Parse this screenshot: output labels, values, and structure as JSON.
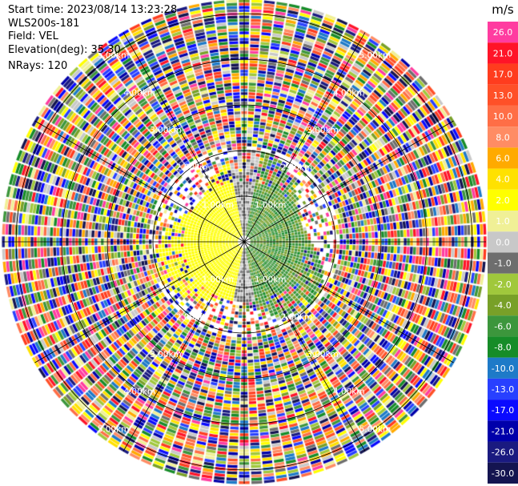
{
  "header": {
    "start_time": "Start time: 2023/08/14 13:23:28",
    "instrument": "WLS200s-181",
    "field": "Field: VEL",
    "elevation": "Elevation(deg): 35.30",
    "nrays": "NRays: 120"
  },
  "chart_data": {
    "type": "heatmap",
    "subtype": "ppi-polar",
    "title": "",
    "field": "VEL",
    "units": "m/s",
    "elevation_deg": 35.3,
    "n_rays": 120,
    "range_ring_labels": [
      "1.00km",
      "2.00km",
      "3.00km",
      "4.00km",
      "5.00km"
    ],
    "range_rings_km": [
      1,
      2,
      3,
      4,
      5
    ],
    "max_range_km": 5.3,
    "colorbar": {
      "label": "m/s",
      "ticks": [
        "26.0",
        "21.0",
        "17.0",
        "13.0",
        "10.0",
        "8.0",
        "6.0",
        "4.0",
        "2.0",
        "1.0",
        "0.0",
        "-1.0",
        "-2.0",
        "-4.0",
        "-6.0",
        "-8.0",
        "-10.0",
        "-13.0",
        "-17.0",
        "-21.0",
        "-26.0",
        "-30.0"
      ],
      "colors": [
        "#ff3ca0",
        "#ff1428",
        "#ff3c1e",
        "#ff5028",
        "#ff6e46",
        "#ff8c64",
        "#ffaa00",
        "#ffe100",
        "#ffff00",
        "#f0f096",
        "#c8c8c8",
        "#6e6e6e",
        "#a0c83c",
        "#78a028",
        "#3c963c",
        "#168c28",
        "#1e7ac8",
        "#2840ff",
        "#0a0aff",
        "#0000aa",
        "#1a1a80",
        "#141450"
      ],
      "range": [
        -30.0,
        30.0
      ]
    },
    "pattern_description_values": {
      "near_field_west": 2.5,
      "near_field_east": -6.0,
      "near_field_north_south": 0.0
    }
  }
}
